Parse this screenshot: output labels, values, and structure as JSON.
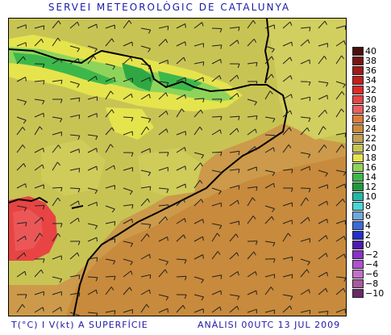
{
  "header": {
    "title": "SERVEI METEOROLÒGIC DE CATALUNYA"
  },
  "footer": {
    "variable_label": "T(°C) I V(kt) A SUPERFÍCIE",
    "analysis_label": "ANÀLISI 00UTC 13 JUL 2009"
  },
  "legend": {
    "levels": [
      {
        "label": "40",
        "color": "#4a0f0f"
      },
      {
        "label": "38",
        "color": "#7a1414"
      },
      {
        "label": "36",
        "color": "#a31818"
      },
      {
        "label": "34",
        "color": "#c41e1e"
      },
      {
        "label": "32",
        "color": "#dc2a2a"
      },
      {
        "label": "30",
        "color": "#e84444"
      },
      {
        "label": "28",
        "color": "#ec5f5f"
      },
      {
        "label": "26",
        "color": "#e07a3c"
      },
      {
        "label": "24",
        "color": "#cc8a3a"
      },
      {
        "label": "22",
        "color": "#c4a052"
      },
      {
        "label": "20",
        "color": "#c8c454"
      },
      {
        "label": "18",
        "color": "#e6e44c"
      },
      {
        "label": "16",
        "color": "#8fd45a"
      },
      {
        "label": "14",
        "color": "#3cb84a"
      },
      {
        "label": "12",
        "color": "#1f9a3a"
      },
      {
        "label": "10",
        "color": "#20b8a8"
      },
      {
        "label": "8",
        "color": "#4ad6d6"
      },
      {
        "label": "6",
        "color": "#6ea8e0"
      },
      {
        "label": "4",
        "color": "#3c6ad6"
      },
      {
        "label": "2",
        "color": "#2230c8"
      },
      {
        "label": "0",
        "color": "#5018b0"
      },
      {
        "label": "−2",
        "color": "#8a30c8"
      },
      {
        "label": "−4",
        "color": "#b050d0"
      },
      {
        "label": "−6",
        "color": "#c070c8"
      },
      {
        "label": "−8",
        "color": "#a85a9a"
      },
      {
        "label": "−10",
        "color": "#6a2a6a"
      }
    ]
  },
  "map": {
    "colors": {
      "sea": "#c88a3c",
      "coast_land": "#cc9a4a",
      "interior": "#c8c454",
      "highland": "#e6e44c",
      "peaks": "#8fd45a",
      "summits": "#3cb84a",
      "hot": "#e84444"
    }
  }
}
